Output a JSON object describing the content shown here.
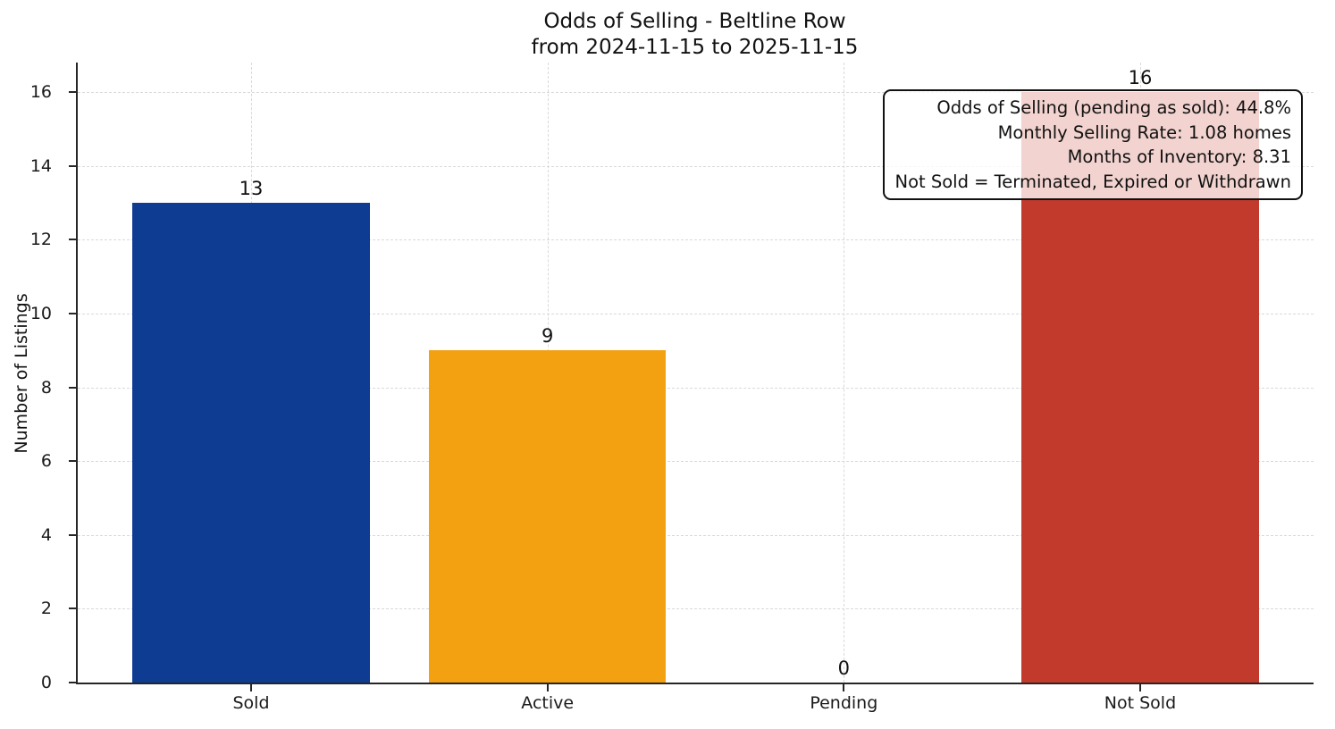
{
  "chart_data": {
    "type": "bar",
    "title": "Odds of Selling - Beltline Row",
    "subtitle": "from 2024-11-15 to 2025-11-15",
    "xlabel": "",
    "ylabel": "Number of Listings",
    "categories": [
      "Sold",
      "Active",
      "Pending",
      "Not Sold"
    ],
    "values": [
      13,
      9,
      0,
      16
    ],
    "bar_colors": [
      "#0e3c92",
      "#f3a111",
      "#888888",
      "#c23a2b"
    ],
    "value_labels": [
      "13",
      "9",
      "0",
      "16"
    ],
    "yticks": [
      0,
      2,
      4,
      6,
      8,
      10,
      12,
      14,
      16
    ],
    "ylim": [
      0,
      16.8
    ],
    "grid": "dashed-both-axes",
    "legend": "none",
    "annotation_position": "top-right",
    "annotation_lines": [
      "Odds of Selling (pending as sold): 44.8%",
      "Monthly Selling Rate: 1.08 homes",
      "Months of Inventory: 8.31",
      "Not Sold = Terminated, Expired or Withdrawn"
    ],
    "colors": {
      "sold_bar": "#0e3c92",
      "active_bar": "#f3a111",
      "not_sold_bar": "#c23a2b",
      "grid": "#d9d9d9",
      "axis": "#262626",
      "text": "#111111",
      "background": "#ffffff"
    }
  }
}
